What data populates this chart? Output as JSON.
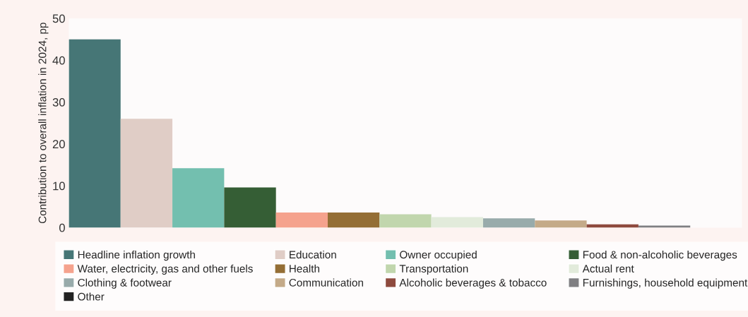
{
  "chart_data": {
    "type": "bar",
    "stacked": true,
    "ylabel": "Contribution to overall inflation in 2024, pp",
    "categories": [
      null,
      null,
      null,
      null,
      null,
      null,
      null,
      null,
      null,
      null,
      null,
      null
    ],
    "series": [
      {
        "name": "Headline inflation growth",
        "color": "#467676",
        "values": [
          45,
          null,
          null,
          null,
          null,
          null,
          null,
          null,
          null,
          null,
          null,
          null
        ]
      },
      {
        "name": "Education",
        "color": "#e0cdc6",
        "values": [
          null,
          26,
          null,
          null,
          null,
          null,
          null,
          null,
          null,
          null,
          null,
          null
        ]
      },
      {
        "name": "Owner occupied",
        "color": "#73bfaf",
        "values": [
          null,
          null,
          14.2,
          null,
          null,
          null,
          null,
          null,
          null,
          null,
          null,
          null
        ]
      },
      {
        "name": "Food & non-alcoholic beverages",
        "color": "#355e35",
        "values": [
          null,
          null,
          null,
          9.6,
          null,
          null,
          null,
          null,
          null,
          null,
          null,
          null
        ]
      },
      {
        "name": "Water, electricity, gas and other fuels",
        "color": "#f5a28d",
        "values": [
          null,
          null,
          null,
          null,
          3.6,
          null,
          null,
          null,
          null,
          null,
          null,
          null
        ]
      },
      {
        "name": "Health",
        "color": "#946e35",
        "values": [
          null,
          null,
          null,
          null,
          null,
          3.6,
          null,
          null,
          null,
          null,
          null,
          null
        ]
      },
      {
        "name": "Transportation",
        "color": "#c1d6ad",
        "values": [
          null,
          null,
          null,
          null,
          null,
          null,
          3.2,
          null,
          null,
          null,
          null,
          null
        ]
      },
      {
        "name": "Actual rent",
        "color": "#e2ebdb",
        "values": [
          null,
          null,
          null,
          null,
          null,
          null,
          null,
          2.5,
          null,
          null,
          null,
          null
        ]
      },
      {
        "name": "Clothing & footwear",
        "color": "#98abab",
        "values": [
          null,
          null,
          null,
          null,
          null,
          null,
          null,
          null,
          2.2,
          null,
          null,
          null
        ]
      },
      {
        "name": "Communication",
        "color": "#c4aa88",
        "values": [
          null,
          null,
          null,
          null,
          null,
          null,
          null,
          null,
          null,
          1.7,
          null,
          null
        ]
      },
      {
        "name": "Alcoholic beverages & tobacco",
        "color": "#8e4a3e",
        "values": [
          null,
          null,
          null,
          null,
          null,
          null,
          null,
          null,
          null,
          null,
          0.8,
          null
        ]
      },
      {
        "name": "Furnishings, household equipment",
        "color": "#7f7f82",
        "values": [
          null,
          null,
          null,
          null,
          null,
          null,
          null,
          null,
          null,
          null,
          null,
          0.5
        ]
      },
      {
        "name": "Other",
        "color": "#222222",
        "values": [
          null,
          null,
          null,
          null,
          null,
          null,
          null,
          null,
          null,
          null,
          null,
          null
        ]
      }
    ],
    "ylim": [
      0,
      50
    ],
    "yticks": [
      0,
      10,
      20,
      30,
      40,
      50
    ],
    "grid": false,
    "legend": "bottom",
    "tick_labels": "y"
  }
}
